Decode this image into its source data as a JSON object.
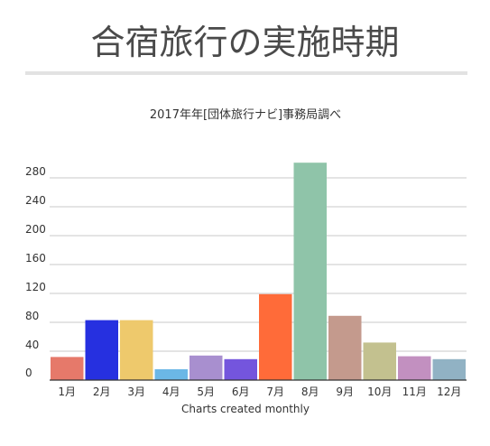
{
  "page": {
    "title": "合宿旅行の実施時期"
  },
  "chart_data": {
    "type": "bar",
    "title": "2017年年[団体旅行ナビ]事務局調べ",
    "xlabel": "Charts created monthly",
    "ylabel": "",
    "categories": [
      "1月",
      "2月",
      "3月",
      "4月",
      "5月",
      "6月",
      "7月",
      "8月",
      "9月",
      "10月",
      "11月",
      "12月"
    ],
    "values": [
      32,
      83,
      83,
      15,
      34,
      29,
      119,
      301,
      89,
      52,
      33,
      29
    ],
    "colors": [
      "#e6796a",
      "#2630e0",
      "#eec96c",
      "#6bb7e6",
      "#a88fcf",
      "#7455dd",
      "#ff6b39",
      "#8fc4a9",
      "#c49a8d",
      "#c3c18f",
      "#c290c0",
      "#91b2c4"
    ],
    "yticks": [
      0,
      40,
      80,
      120,
      160,
      200,
      240,
      280
    ],
    "ylim": [
      0,
      300
    ],
    "grid": true,
    "legend": "none"
  }
}
